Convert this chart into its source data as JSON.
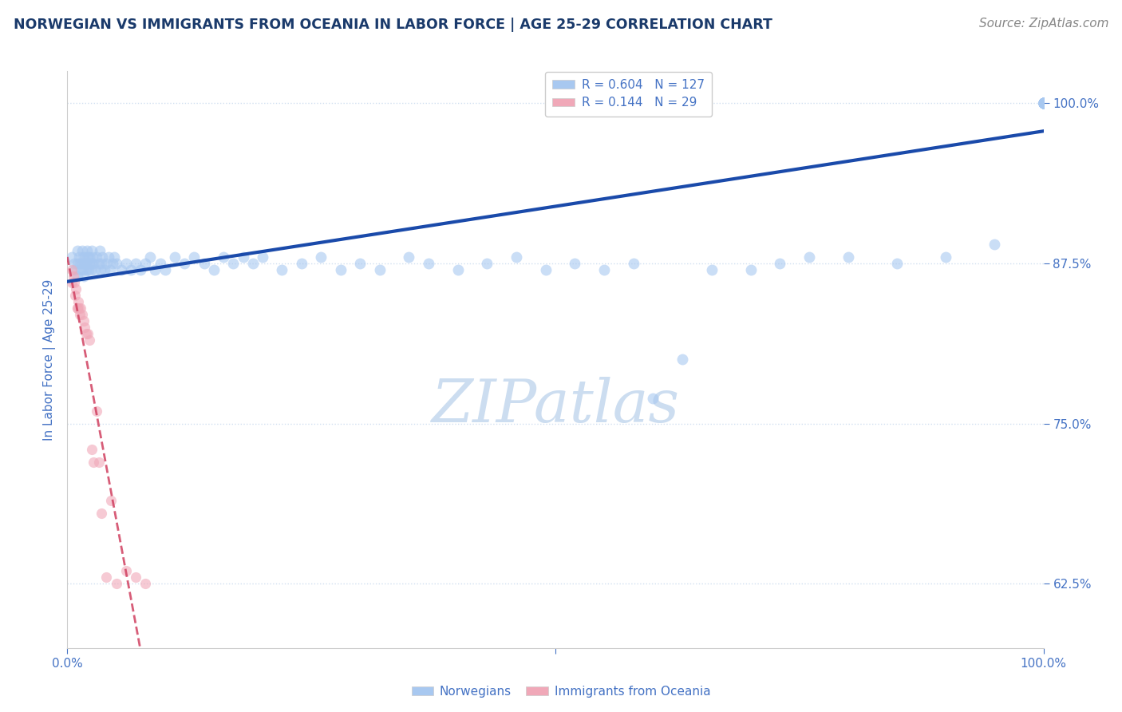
{
  "title": "NORWEGIAN VS IMMIGRANTS FROM OCEANIA IN LABOR FORCE | AGE 25-29 CORRELATION CHART",
  "source": "Source: ZipAtlas.com",
  "ylabel": "In Labor Force | Age 25-29",
  "xlim": [
    0.0,
    1.0
  ],
  "ylim": [
    0.575,
    1.025
  ],
  "yticks": [
    0.625,
    0.75,
    0.875,
    1.0
  ],
  "ytick_labels": [
    "62.5%",
    "75.0%",
    "87.5%",
    "100.0%"
  ],
  "legend_r_blue": "R = 0.604",
  "legend_n_blue": "N = 127",
  "legend_r_pink": "R = 0.144",
  "legend_n_pink": "N = 29",
  "blue_color": "#a8c8f0",
  "pink_color": "#f0a8b8",
  "blue_line_color": "#1a4aaa",
  "pink_line_color": "#d04060",
  "title_color": "#1a3a6b",
  "axis_label_color": "#4472c4",
  "tick_color": "#4472c4",
  "grid_color": "#d0dff0",
  "watermark_color": "#ccddf0",
  "background_color": "#ffffff",
  "source_color": "#888888",
  "blue_x": [
    0.005,
    0.007,
    0.008,
    0.01,
    0.01,
    0.01,
    0.012,
    0.013,
    0.014,
    0.015,
    0.015,
    0.016,
    0.016,
    0.017,
    0.018,
    0.018,
    0.019,
    0.02,
    0.02,
    0.021,
    0.022,
    0.023,
    0.023,
    0.024,
    0.025,
    0.025,
    0.026,
    0.027,
    0.028,
    0.03,
    0.032,
    0.033,
    0.034,
    0.035,
    0.036,
    0.038,
    0.04,
    0.042,
    0.044,
    0.046,
    0.048,
    0.05,
    0.055,
    0.06,
    0.065,
    0.07,
    0.075,
    0.08,
    0.085,
    0.09,
    0.095,
    0.1,
    0.11,
    0.12,
    0.13,
    0.14,
    0.15,
    0.16,
    0.17,
    0.18,
    0.19,
    0.2,
    0.22,
    0.24,
    0.26,
    0.28,
    0.3,
    0.32,
    0.35,
    0.37,
    0.4,
    0.43,
    0.46,
    0.49,
    0.52,
    0.55,
    0.58,
    0.6,
    0.63,
    0.66,
    0.7,
    0.73,
    0.76,
    0.8,
    0.85,
    0.9,
    0.95,
    1.0,
    1.0,
    1.0,
    1.0,
    1.0,
    1.0,
    1.0,
    1.0,
    1.0,
    1.0,
    1.0,
    1.0,
    1.0,
    1.0,
    1.0,
    1.0,
    1.0,
    1.0,
    1.0,
    1.0,
    1.0,
    1.0,
    1.0,
    1.0,
    1.0,
    1.0,
    1.0,
    1.0,
    1.0,
    1.0,
    1.0,
    1.0,
    1.0,
    1.0,
    1.0,
    1.0,
    1.0,
    1.0,
    1.0,
    1.0
  ],
  "blue_y": [
    0.88,
    0.875,
    0.87,
    0.885,
    0.875,
    0.865,
    0.88,
    0.875,
    0.87,
    0.885,
    0.875,
    0.88,
    0.87,
    0.865,
    0.875,
    0.88,
    0.87,
    0.885,
    0.875,
    0.88,
    0.87,
    0.875,
    0.88,
    0.87,
    0.885,
    0.875,
    0.88,
    0.875,
    0.87,
    0.88,
    0.875,
    0.885,
    0.87,
    0.875,
    0.88,
    0.87,
    0.875,
    0.88,
    0.87,
    0.875,
    0.88,
    0.875,
    0.87,
    0.875,
    0.87,
    0.875,
    0.87,
    0.875,
    0.88,
    0.87,
    0.875,
    0.87,
    0.88,
    0.875,
    0.88,
    0.875,
    0.87,
    0.88,
    0.875,
    0.88,
    0.875,
    0.88,
    0.87,
    0.875,
    0.88,
    0.87,
    0.875,
    0.87,
    0.88,
    0.875,
    0.87,
    0.875,
    0.88,
    0.87,
    0.875,
    0.87,
    0.875,
    0.77,
    0.8,
    0.87,
    0.87,
    0.875,
    0.88,
    0.88,
    0.875,
    0.88,
    0.89,
    1.0,
    1.0,
    1.0,
    1.0,
    1.0,
    1.0,
    1.0,
    1.0,
    1.0,
    1.0,
    1.0,
    1.0,
    1.0,
    1.0,
    1.0,
    1.0,
    1.0,
    1.0,
    1.0,
    1.0,
    1.0,
    1.0,
    1.0,
    1.0,
    1.0,
    1.0,
    1.0,
    1.0,
    1.0,
    1.0,
    1.0,
    1.0,
    1.0,
    1.0,
    1.0,
    1.0,
    1.0,
    1.0,
    1.0,
    1.0
  ],
  "pink_x": [
    0.005,
    0.005,
    0.006,
    0.007,
    0.008,
    0.009,
    0.01,
    0.01,
    0.011,
    0.012,
    0.013,
    0.014,
    0.015,
    0.017,
    0.018,
    0.019,
    0.021,
    0.023,
    0.025,
    0.027,
    0.03,
    0.032,
    0.035,
    0.04,
    0.045,
    0.05,
    0.06,
    0.07,
    0.08
  ],
  "pink_y": [
    0.87,
    0.86,
    0.865,
    0.86,
    0.85,
    0.855,
    0.84,
    0.84,
    0.845,
    0.84,
    0.835,
    0.84,
    0.835,
    0.83,
    0.825,
    0.82,
    0.82,
    0.815,
    0.73,
    0.72,
    0.76,
    0.72,
    0.68,
    0.63,
    0.69,
    0.625,
    0.635,
    0.63,
    0.625
  ],
  "dot_size_blue": 100,
  "dot_size_pink": 90,
  "dot_alpha": 0.6,
  "title_fontsize": 12.5,
  "axis_label_fontsize": 11,
  "tick_fontsize": 11,
  "legend_fontsize": 11,
  "source_fontsize": 11
}
